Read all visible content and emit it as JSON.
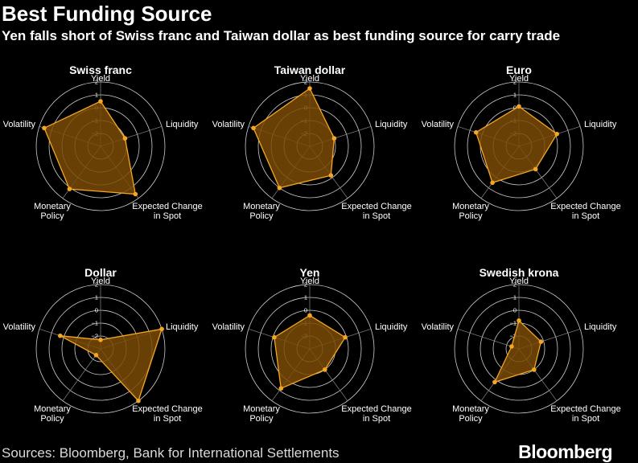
{
  "header": {
    "title": "Best Funding Source",
    "subtitle": "Yen falls short of Swiss franc and Taiwan dollar as best funding source for carry trade"
  },
  "footer": {
    "source": "Sources: Bloomberg, Bank for International Settlements",
    "logo": "Bloomberg"
  },
  "colors": {
    "background": "#000000",
    "fill": "#7a4a06",
    "stroke": "#f5a623",
    "grid": "#cccccc",
    "spoke": "#888888"
  },
  "chart_data": [
    {
      "type": "radar",
      "title": "Swiss franc",
      "axes": [
        "Yield",
        "Liquidity",
        "Expected Change in Spot",
        "Monetary Policy",
        "Volatility"
      ],
      "rlim": [
        -3,
        2
      ],
      "ticks": [
        -2,
        -1,
        0,
        1,
        2
      ],
      "values": [
        0.5,
        -1.0,
        1.6,
        1.1,
        1.6
      ]
    },
    {
      "type": "radar",
      "title": "Taiwan dollar",
      "axes": [
        "Yield",
        "Liquidity",
        "Expected Change in Spot",
        "Monetary Policy",
        "Volatility"
      ],
      "rlim": [
        -3,
        2
      ],
      "ticks": [
        -2,
        -1,
        0,
        1,
        2
      ],
      "values": [
        1.5,
        -1.0,
        -0.2,
        1.0,
        1.6
      ]
    },
    {
      "type": "radar",
      "title": "Euro",
      "axes": [
        "Yield",
        "Liquidity",
        "Expected Change in Spot",
        "Monetary Policy",
        "Volatility"
      ],
      "rlim": [
        -3,
        2
      ],
      "ticks": [
        -2,
        -1,
        0,
        1,
        2
      ],
      "values": [
        0.1,
        0.1,
        -0.8,
        0.5,
        0.5
      ]
    },
    {
      "type": "radar",
      "title": "Dollar",
      "axes": [
        "Yield",
        "Liquidity",
        "Expected Change in Spot",
        "Monetary Policy",
        "Volatility"
      ],
      "rlim": [
        -3,
        2
      ],
      "ticks": [
        -2,
        -1,
        0,
        1,
        2
      ],
      "values": [
        -2.3,
        2.0,
        2.0,
        -2.4,
        0.3
      ]
    },
    {
      "type": "radar",
      "title": "Yen",
      "axes": [
        "Yield",
        "Liquidity",
        "Expected Change in Spot",
        "Monetary Policy",
        "Volatility"
      ],
      "rlim": [
        -3,
        2
      ],
      "ticks": [
        -2,
        -1,
        0,
        1,
        2
      ],
      "values": [
        -0.4,
        -0.1,
        -1.0,
        0.8,
        -0.1
      ]
    },
    {
      "type": "radar",
      "title": "Swedish krona",
      "axes": [
        "Yield",
        "Liquidity",
        "Expected Change in Spot",
        "Monetary Policy",
        "Volatility"
      ],
      "rlim": [
        -3,
        2
      ],
      "ticks": [
        -2,
        -1,
        0,
        1,
        2
      ],
      "values": [
        -0.8,
        -1.2,
        -1.0,
        0.2,
        -2.4
      ]
    }
  ]
}
